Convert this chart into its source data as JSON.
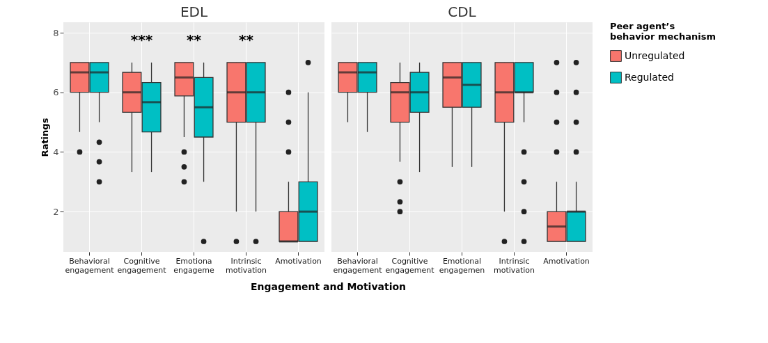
{
  "chart_data": [
    {
      "type": "box",
      "title": "EDL",
      "ylabel": "Ratings",
      "legend_title": "Peer agent’s behavior mechanism",
      "legend": "right",
      "xlabel": "Engagement and Motivation",
      "categories": [
        "Behavioral engagement",
        "Cognitive engagement",
        "Emotiona engageme",
        "Intrinsic motivation",
        "Amotivation"
      ],
      "ylim": [
        0.65,
        8.35
      ],
      "yticks": [
        2,
        4,
        6,
        8
      ],
      "grid": true,
      "annotations": [
        "***",
        "**",
        "**"
      ],
      "series": [
        {
          "name": "Unregulated",
          "color": "#f8766d",
          "boxes": [
            {
              "low": 4.67,
              "q1": 6,
              "median": 6.67,
              "q3": 7,
              "high": 7,
              "outliers": [
                4
              ]
            },
            {
              "low": 3.33,
              "q1": 5.33,
              "median": 6,
              "q3": 6.67,
              "high": 7
            },
            {
              "low": 4.5,
              "q1": 5.88,
              "median": 6.5,
              "q3": 7,
              "high": 7,
              "outliers": [
                4,
                3.5,
                3
              ]
            },
            {
              "low": 2,
              "q1": 5,
              "median": 6,
              "q3": 7,
              "high": 7,
              "outliers": [
                1
              ]
            },
            {
              "low": 1,
              "q1": 1,
              "median": 1,
              "q3": 2,
              "high": 3,
              "outliers": [
                6,
                5,
                4
              ]
            }
          ]
        },
        {
          "name": "Regulated",
          "color": "#00bfc4",
          "boxes": [
            {
              "low": 5,
              "q1": 6,
              "median": 6.67,
              "q3": 7,
              "high": 7,
              "outliers": [
                4.33,
                3.67,
                3
              ]
            },
            {
              "low": 3.33,
              "q1": 4.67,
              "median": 5.67,
              "q3": 6.33,
              "high": 7
            },
            {
              "low": 3,
              "q1": 4.5,
              "median": 5.5,
              "q3": 6.5,
              "high": 7,
              "outliers": [
                1
              ]
            },
            {
              "low": 2,
              "q1": 5,
              "median": 6,
              "q3": 7,
              "high": 7,
              "outliers": [
                1
              ]
            },
            {
              "low": 1,
              "q1": 1,
              "median": 2,
              "q3": 3,
              "high": 6,
              "outliers": [
                7
              ]
            }
          ]
        }
      ]
    },
    {
      "type": "box",
      "title": "CDL",
      "tick_labels": "x",
      "categories": [
        "Behavioral engagement",
        "Cognitive engagement",
        "Emotional engagemen",
        "Intrinsic motivation",
        "Amotivation"
      ],
      "ylim": [
        0.65,
        8.35
      ],
      "yticks": [
        2,
        4,
        6,
        8
      ],
      "grid": true,
      "series": [
        {
          "name": "Unregulated",
          "color": "#f8766d",
          "boxes": [
            {
              "low": 5,
              "q1": 6,
              "median": 6.67,
              "q3": 7,
              "high": 7
            },
            {
              "low": 3.67,
              "q1": 5,
              "median": 6,
              "q3": 6.33,
              "high": 7,
              "outliers": [
                3,
                2.33,
                2
              ]
            },
            {
              "low": 3.5,
              "q1": 5.5,
              "median": 6.5,
              "q3": 7,
              "high": 7
            },
            {
              "low": 2,
              "q1": 5,
              "median": 6,
              "q3": 7,
              "high": 7,
              "outliers": [
                1
              ]
            },
            {
              "low": 1,
              "q1": 1,
              "median": 1.5,
              "q3": 2,
              "high": 3,
              "outliers": [
                7,
                6,
                5,
                4
              ]
            }
          ]
        },
        {
          "name": "Regulated",
          "color": "#00bfc4",
          "boxes": [
            {
              "low": 4.67,
              "q1": 6,
              "median": 6.67,
              "q3": 7,
              "high": 7
            },
            {
              "low": 3.33,
              "q1": 5.33,
              "median": 6,
              "q3": 6.67,
              "high": 7
            },
            {
              "low": 3.5,
              "q1": 5.5,
              "median": 6.25,
              "q3": 7,
              "high": 7
            },
            {
              "low": 5,
              "q1": 6,
              "median": 6,
              "q3": 7,
              "high": 7,
              "outliers": [
                4,
                3,
                2,
                1
              ]
            },
            {
              "low": 1,
              "q1": 1,
              "median": 2,
              "q3": 2,
              "high": 3,
              "outliers": [
                7,
                6,
                5,
                4
              ]
            }
          ]
        }
      ]
    }
  ]
}
